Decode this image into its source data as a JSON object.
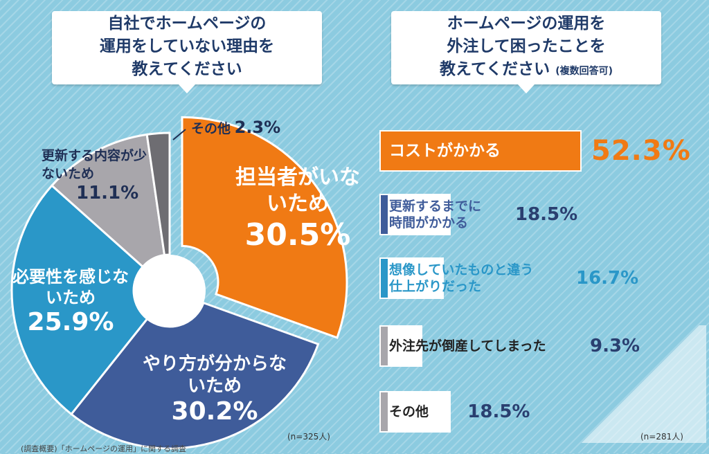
{
  "left_title_lines": [
    "自社でホームページの",
    "運用をしていない理由を",
    "教えてください"
  ],
  "right_title_lines": [
    "ホームページの運用を",
    "外注して困ったことを",
    "教えてください"
  ],
  "right_title_note": "(複数回答可)",
  "left_n": "(n=325人)",
  "right_n": "(n=281人)",
  "footer": "(調査概要)「ホームページの運用」に関する調査",
  "colors": {
    "orange": "#f07a14",
    "navy": "#3f5c9a",
    "teal": "#2a97c8",
    "gray": "#a8a6ab",
    "darkgray": "#6e6d72"
  },
  "chart_data": [
    {
      "type": "pie",
      "slices": [
        {
          "label": "担当者がいないため",
          "value": 30.5,
          "pct_text": "30.5%",
          "color": "#f07a14"
        },
        {
          "label": "やり方が分からないため",
          "value": 30.2,
          "pct_text": "30.2%",
          "color": "#3f5c9a"
        },
        {
          "label": "必要性を感じないため",
          "value": 25.9,
          "pct_text": "25.9%",
          "color": "#2a97c8"
        },
        {
          "label": "更新する内容が少ないため",
          "value": 11.1,
          "pct_text": "11.1%",
          "color": "#a8a6ab"
        },
        {
          "label": "その他",
          "value": 2.3,
          "pct_text": "2.3%",
          "color": "#6e6d72"
        }
      ]
    },
    {
      "type": "bar",
      "orientation": "horizontal",
      "categories": [
        "コストがかかる",
        "更新するまでに時間がかかる",
        "想像していたものと違う仕上がりだった",
        "外注先が倒産してしまった",
        "その他"
      ],
      "values": [
        52.3,
        18.5,
        16.7,
        9.3,
        18.5
      ],
      "value_texts": [
        "52.3%",
        "18.5%",
        "16.7%",
        "9.3%",
        "18.5%"
      ],
      "colors": [
        "#f07a14",
        "#3f5c9a",
        "#2a97c8",
        "#a8a6ab",
        "#a8a6ab"
      ]
    }
  ]
}
